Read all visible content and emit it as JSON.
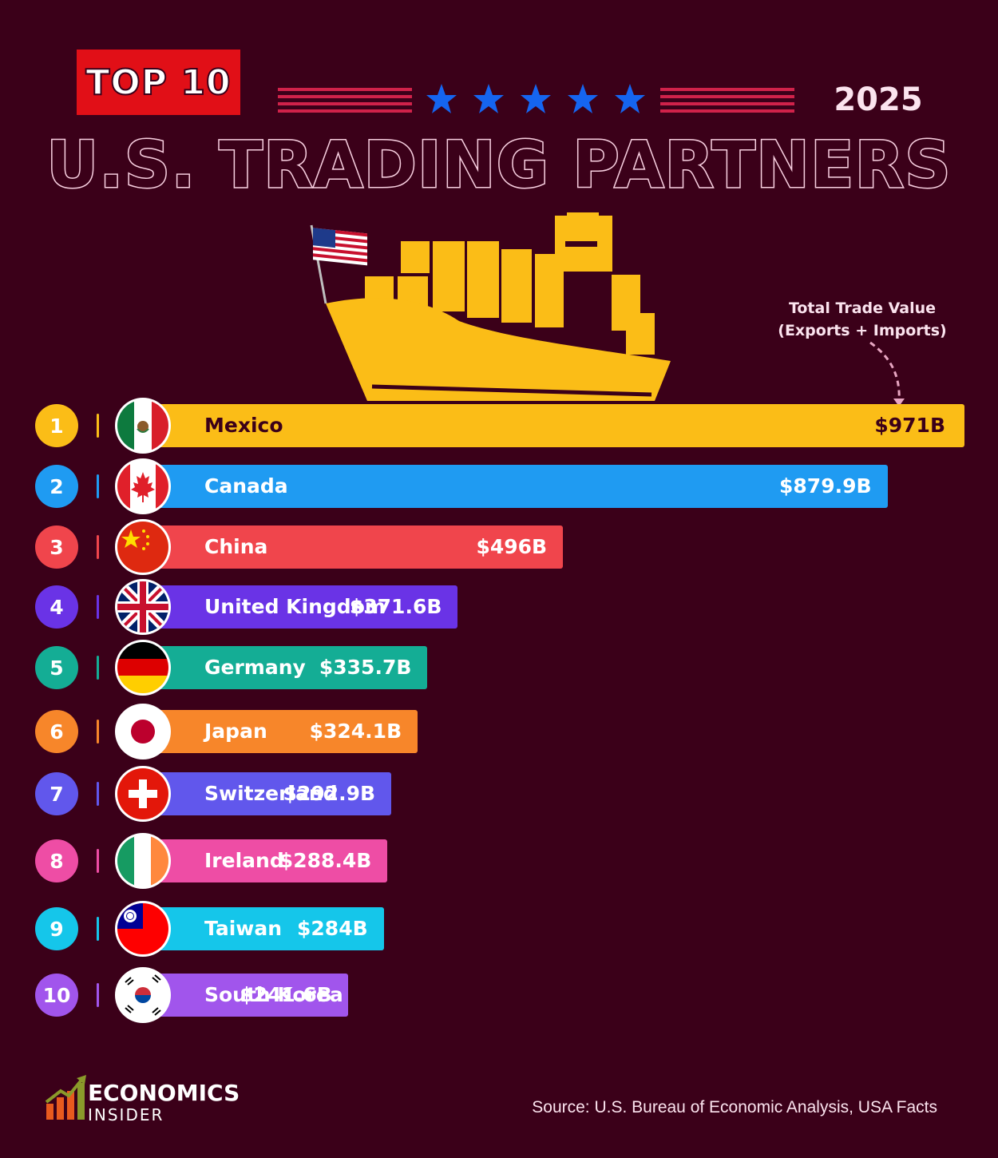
{
  "header": {
    "badge": "TOP 10",
    "year": "2025",
    "title": "U.S. TRADING PARTNERS"
  },
  "annotation": {
    "line1": "Total Trade Value",
    "line2": "(Exports + Imports)"
  },
  "chart_data": {
    "type": "bar",
    "orientation": "horizontal",
    "title": "U.S. TRADING PARTNERS",
    "ylabel": "",
    "xlabel": "",
    "unit": "$B",
    "xlim": [
      0,
      1000
    ],
    "categories": [
      "Mexico",
      "Canada",
      "China",
      "United Kingdom",
      "Germany",
      "Japan",
      "Switzerland",
      "Ireland",
      "Taiwan",
      "South Korea"
    ],
    "values": [
      971,
      879.9,
      496,
      371.6,
      335.7,
      324.1,
      292.9,
      288.4,
      284,
      241.6
    ],
    "value_labels": [
      "$971B",
      "$879.9B",
      "$496B",
      "$371.6B",
      "$335.7B",
      "$324.1B",
      "$292.9B",
      "$288.4B",
      "$284B",
      "$241.6B"
    ],
    "ranks": [
      "1",
      "2",
      "3",
      "4",
      "5",
      "6",
      "7",
      "8",
      "9",
      "10"
    ],
    "colors": [
      "#fbbd17",
      "#1f9bf2",
      "#f0454c",
      "#6a33e6",
      "#14ad95",
      "#f7862a",
      "#6157ec",
      "#ee4da5",
      "#15c6ea",
      "#a155ec"
    ],
    "flags": [
      "mexico-flag-icon",
      "canada-flag-icon",
      "china-flag-icon",
      "uk-flag-icon",
      "germany-flag-icon",
      "japan-flag-icon",
      "switzerland-flag-icon",
      "ireland-flag-icon",
      "taiwan-flag-icon",
      "south-korea-flag-icon"
    ]
  },
  "footer": {
    "logo_line1": "ECONOMICS",
    "logo_line2": "INSIDER",
    "source": "Source: U.S. Bureau of Economic Analysis, USA Facts"
  }
}
